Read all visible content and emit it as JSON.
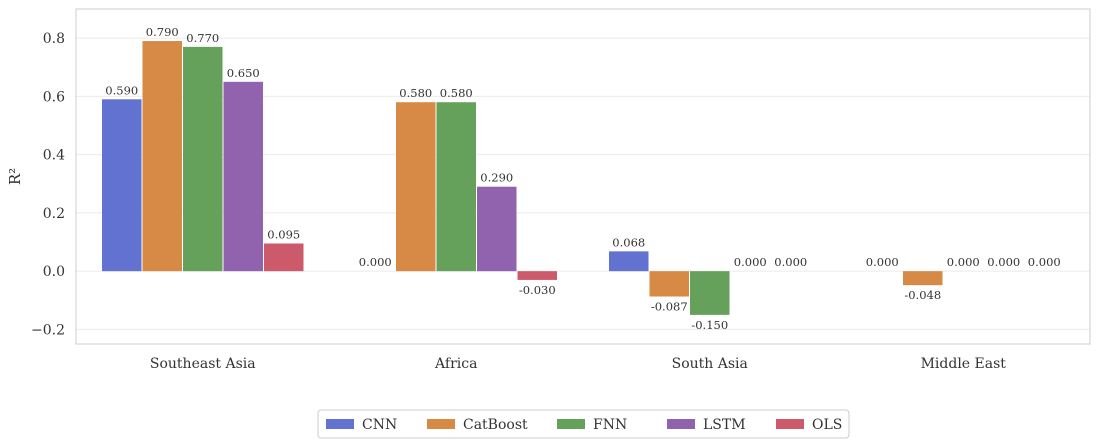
{
  "chart_data": {
    "type": "bar",
    "categories": [
      "Southeast Asia",
      "Africa",
      "South Asia",
      "Middle East"
    ],
    "series": [
      {
        "name": "CNN",
        "color": "#6172d1",
        "values": [
          0.59,
          0.0,
          0.068,
          0.0
        ],
        "labels": [
          "0.590",
          "0.000",
          "0.068",
          "0.000"
        ]
      },
      {
        "name": "CatBoost",
        "color": "#d68a46",
        "values": [
          0.79,
          0.58,
          -0.087,
          -0.048
        ],
        "labels": [
          "0.790",
          "0.580",
          "-0.087",
          "-0.048"
        ]
      },
      {
        "name": "FNN",
        "color": "#65a15a",
        "values": [
          0.77,
          0.58,
          -0.15,
          0.0
        ],
        "labels": [
          "0.770",
          "0.580",
          "-0.150",
          "0.000"
        ]
      },
      {
        "name": "LSTM",
        "color": "#9162ad",
        "values": [
          0.65,
          0.29,
          0.0,
          0.0
        ],
        "labels": [
          "0.650",
          "0.290",
          "0.000",
          "0.000"
        ]
      },
      {
        "name": "OLS",
        "color": "#cc5a6b",
        "values": [
          0.095,
          -0.03,
          0.0,
          0.0
        ],
        "labels": [
          "0.095",
          "-0.030",
          "0.000",
          "0.000"
        ]
      }
    ],
    "ylabel": "R²",
    "ylim": [
      -0.25,
      0.9
    ],
    "yticks": [
      -0.2,
      0.0,
      0.2,
      0.4,
      0.6,
      0.8
    ],
    "ytick_labels": [
      "−0.2",
      "0.0",
      "0.2",
      "0.4",
      "0.6",
      "0.8"
    ],
    "grid": true,
    "legend_position": "bottom-center"
  }
}
